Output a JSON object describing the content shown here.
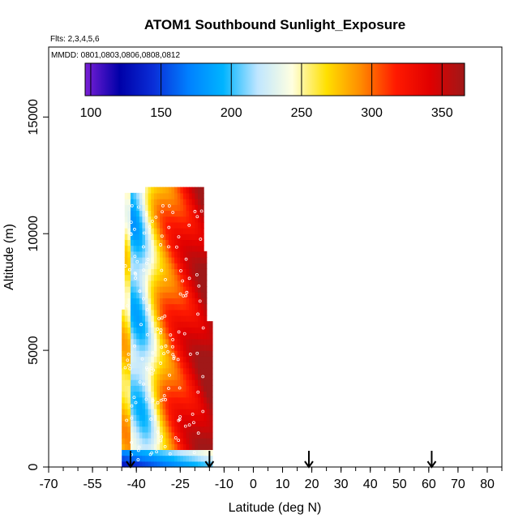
{
  "chart_data": {
    "type": "heatmap",
    "title": "ATOM1 Southbound Sunlight_Exposure",
    "flights_note": "Flts: 2,3,4,5,6",
    "dates_note": "MMDD: 0801,0803,0806,0808,0812",
    "xlabel": "Latitude (deg N)",
    "ylabel": "Altitude (m)",
    "xlim": [
      -70,
      85
    ],
    "ylim": [
      0,
      18000
    ],
    "x_ticks": [
      -70,
      -55,
      -40,
      -25,
      -10,
      0,
      10,
      20,
      30,
      40,
      50,
      60,
      70,
      80
    ],
    "x_tick_labels": [
      "-70",
      "-55",
      "-40",
      "-25",
      "-10",
      "0",
      "10",
      "20",
      "30",
      "40",
      "50",
      "60",
      "70",
      "80"
    ],
    "x_minor_step": 5,
    "y_ticks": [
      0,
      5000,
      10000,
      15000
    ],
    "y_tick_labels": [
      "0",
      "5000",
      "10000",
      "15000"
    ],
    "colorbar": {
      "range": [
        96,
        366
      ],
      "ticks": [
        100,
        150,
        200,
        250,
        300,
        350
      ],
      "tick_labels": [
        "100",
        "150",
        "200",
        "250",
        "300",
        "350"
      ],
      "colors": [
        "#7a1fd6",
        "#0000a8",
        "#0a2fd8",
        "#0080ff",
        "#00b4ff",
        "#bfe6ff",
        "#ffffe0",
        "#ffe000",
        "#ff8a00",
        "#ff1a00",
        "#e00000",
        "#a01818"
      ]
    },
    "data_lat_range": [
      -45,
      -14
    ],
    "data_alt_range": [
      0,
      12000
    ],
    "arrows_lat": [
      -42,
      -15,
      19,
      61
    ],
    "grid": false
  }
}
